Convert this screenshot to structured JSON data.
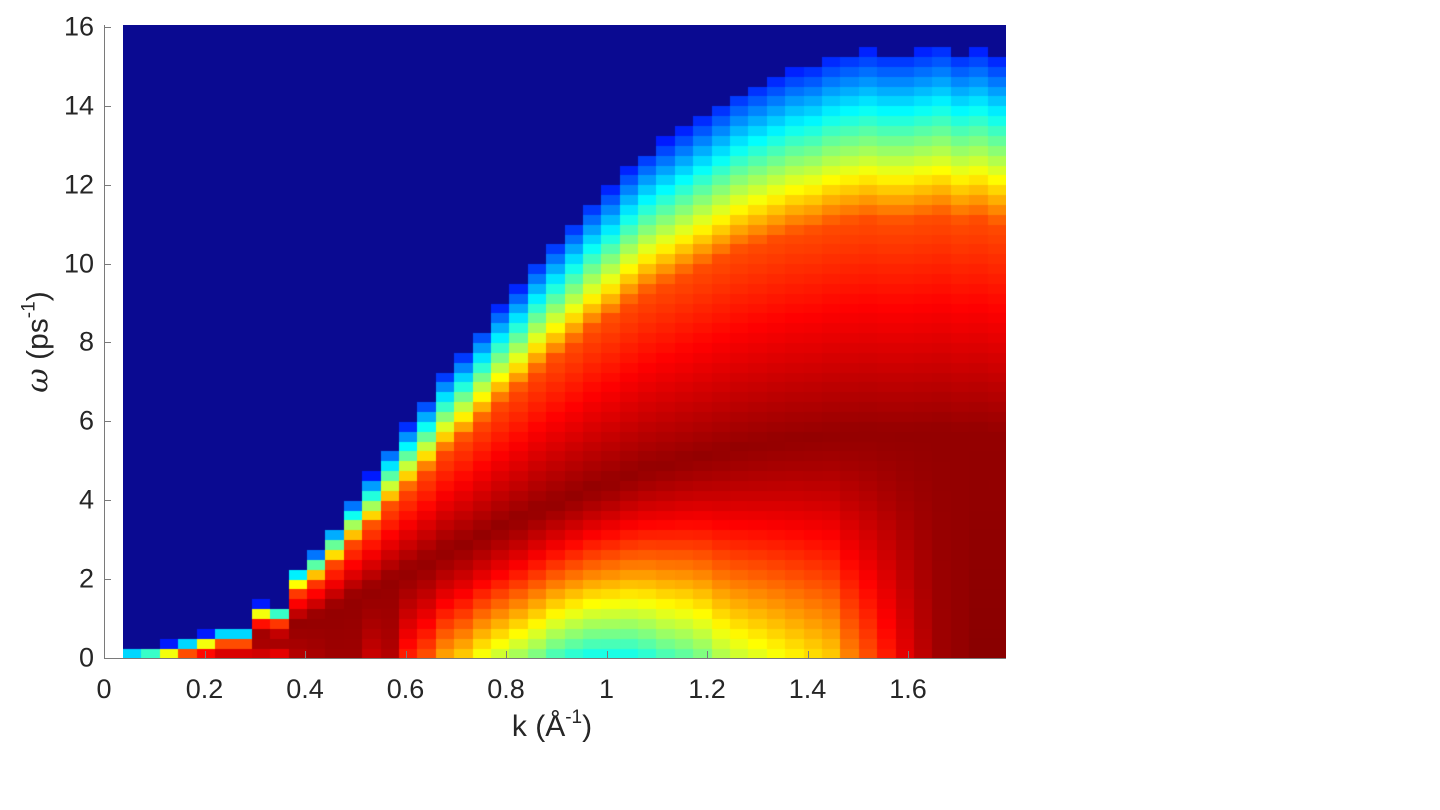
{
  "chart_data": {
    "type": "heatmap",
    "title": "",
    "xlabel": "k (Å^-1)",
    "ylabel": "ω (ps^-1)",
    "xlabel_parts": {
      "main": "k (Å",
      "sup": "-1",
      "close": ")"
    },
    "ylabel_parts": {
      "symbol": "ω",
      "main": " (ps",
      "sup": "-1",
      "close": ")"
    },
    "xlim": [
      0,
      1.8
    ],
    "ylim": [
      0,
      16
    ],
    "x_ticks": [
      "0",
      "0.2",
      "0.4",
      "0.6",
      "0.8",
      "1",
      "1.2",
      "1.4",
      "1.6"
    ],
    "x_tick_values": [
      0,
      0.2,
      0.4,
      0.6,
      0.8,
      1.0,
      1.2,
      1.4,
      1.6
    ],
    "y_ticks": [
      "0",
      "2",
      "4",
      "6",
      "8",
      "10",
      "12",
      "14",
      "16"
    ],
    "y_tick_values": [
      0,
      2,
      4,
      6,
      8,
      10,
      12,
      14,
      16
    ],
    "colormap": "jet",
    "colorbar": false,
    "grid": false,
    "background_color": "#0a0a91",
    "k_start": 0.036,
    "k_step": 0.0367,
    "n_columns": 48,
    "omega_top_edge": [
      0.1,
      0.15,
      0.25,
      0.35,
      0.5,
      0.6,
      0.6,
      1.25,
      1.15,
      2.2,
      2.6,
      3.2,
      3.9,
      4.5,
      5.2,
      5.8,
      6.4,
      7.1,
      7.6,
      8.2,
      8.8,
      9.3,
      9.9,
      10.4,
      10.9,
      11.4,
      11.8,
      12.3,
      12.7,
      13.0,
      13.3,
      13.6,
      13.9,
      14.2,
      14.4,
      14.6,
      14.8,
      14.9,
      15.1,
      15.2,
      15.3,
      15.2,
      15.2,
      15.3,
      15.4,
      15.2,
      15.3,
      15.1
    ],
    "description": "Dynamic structure factor S(k, ω); dark-red high-intensity band follows the dispersion a few ps^-1 below the upper edge; green/cyan low-intensity trough near ω≈0–2 for k≈0.9–1.2; yellow near ω≈0–3 for k≈1.2–1.45; dark red fills low ω at k>1.55.",
    "low_omega_level": [
      0.95,
      0.95,
      0.95,
      0.95,
      0.95,
      0.95,
      0.95,
      0.92,
      0.9,
      0.95,
      0.96,
      0.97,
      0.97,
      0.93,
      0.95,
      0.85,
      0.8,
      0.72,
      0.68,
      0.62,
      0.58,
      0.54,
      0.5,
      0.45,
      0.42,
      0.4,
      0.4,
      0.4,
      0.42,
      0.45,
      0.47,
      0.5,
      0.55,
      0.58,
      0.6,
      0.62,
      0.64,
      0.66,
      0.68,
      0.75,
      0.8,
      0.85,
      0.9,
      0.94,
      0.97,
      0.98,
      0.99,
      0.99
    ]
  }
}
